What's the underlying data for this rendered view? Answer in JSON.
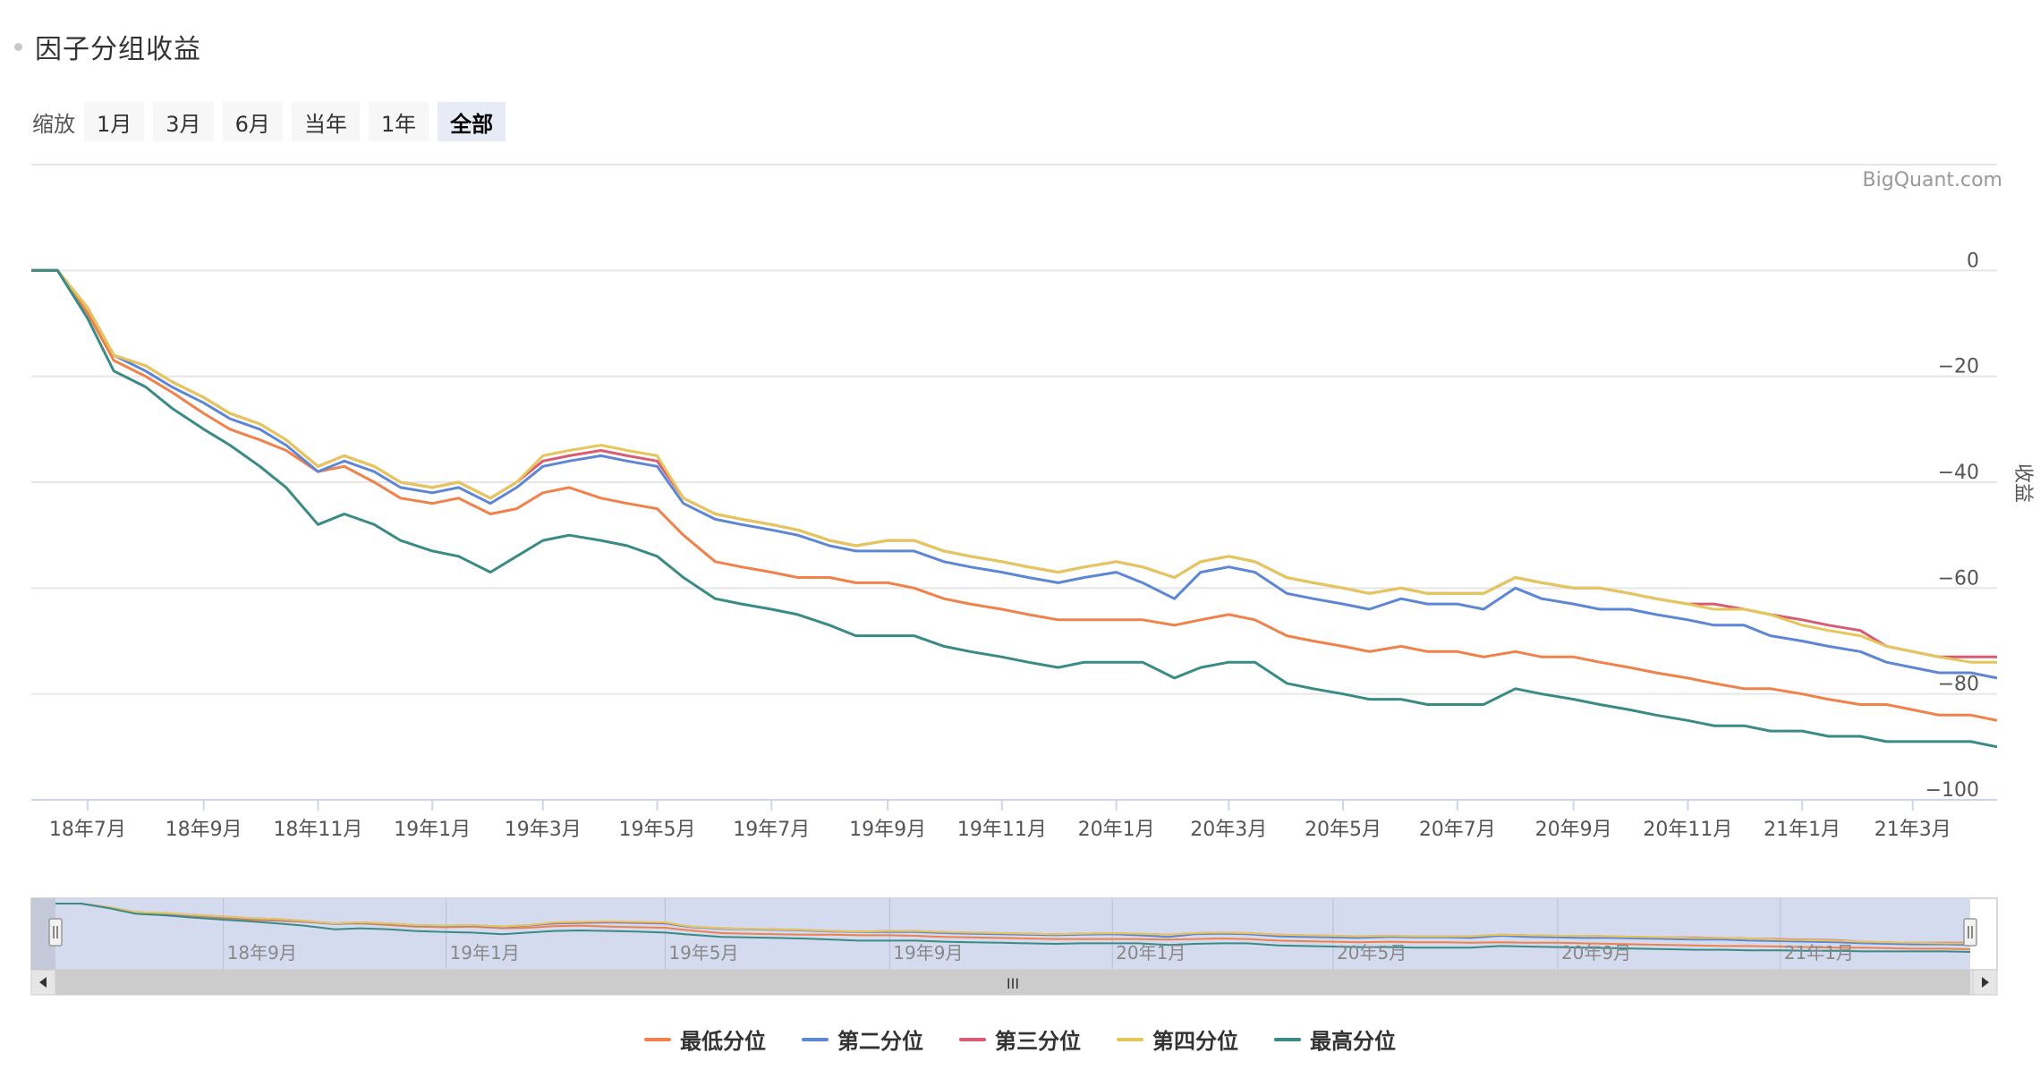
{
  "header": {
    "title": "因子分组收益"
  },
  "zoom": {
    "label": "缩放",
    "buttons": [
      "1月",
      "3月",
      "6月",
      "当年",
      "1年",
      "全部"
    ],
    "active": "全部"
  },
  "credit": "BigQuant.com",
  "navigator": {
    "labels": [
      "18年9月",
      "19年1月",
      "19年5月",
      "19年9月",
      "20年1月",
      "20年5月",
      "20年9月",
      "21年1月"
    ],
    "handle_glyph": "III"
  },
  "colors": {
    "最低分位": "#f0814a",
    "第二分位": "#5d86d4",
    "第三分位": "#d95b74",
    "第四分位": "#e5c65a",
    "最高分位": "#3a8a85",
    "grid": "#e6e6e6",
    "navigator_mask": "#d4dbef"
  },
  "chart_data": {
    "type": "line",
    "title": "",
    "xlabel": "",
    "ylabel": "收益",
    "ylim": [
      -100,
      20
    ],
    "yticks": [
      0,
      -20,
      -40,
      -60,
      -80,
      -100
    ],
    "xticks": [
      "18年7月",
      "18年9月",
      "18年11月",
      "19年1月",
      "19年3月",
      "19年5月",
      "19年7月",
      "19年9月",
      "19年11月",
      "20年1月",
      "20年3月",
      "20年5月",
      "20年7月",
      "20年9月",
      "20年11月",
      "21年1月",
      "21年3月"
    ],
    "x": [
      "2018-06-01",
      "2018-06-15",
      "2018-07-01",
      "2018-07-15",
      "2018-08-01",
      "2018-08-15",
      "2018-09-01",
      "2018-09-15",
      "2018-10-01",
      "2018-10-15",
      "2018-11-01",
      "2018-11-15",
      "2018-12-01",
      "2018-12-15",
      "2019-01-01",
      "2019-01-15",
      "2019-02-01",
      "2019-02-15",
      "2019-03-01",
      "2019-03-15",
      "2019-04-01",
      "2019-04-15",
      "2019-05-01",
      "2019-05-15",
      "2019-06-01",
      "2019-06-15",
      "2019-07-01",
      "2019-07-15",
      "2019-08-01",
      "2019-08-15",
      "2019-09-01",
      "2019-09-15",
      "2019-10-01",
      "2019-10-15",
      "2019-11-01",
      "2019-11-15",
      "2019-12-01",
      "2019-12-15",
      "2020-01-01",
      "2020-01-15",
      "2020-02-01",
      "2020-02-15",
      "2020-03-01",
      "2020-03-15",
      "2020-04-01",
      "2020-04-15",
      "2020-05-01",
      "2020-05-15",
      "2020-06-01",
      "2020-06-15",
      "2020-07-01",
      "2020-07-15",
      "2020-08-01",
      "2020-08-15",
      "2020-09-01",
      "2020-09-15",
      "2020-10-01",
      "2020-10-15",
      "2020-11-01",
      "2020-11-15",
      "2020-12-01",
      "2020-12-15",
      "2021-01-01",
      "2021-01-15",
      "2021-02-01",
      "2021-02-15",
      "2021-03-01",
      "2021-03-15",
      "2021-04-01",
      "2021-04-15"
    ],
    "series": [
      {
        "name": "最低分位",
        "values": [
          0,
          0,
          -8,
          -17,
          -20,
          -23,
          -27,
          -30,
          -32,
          -34,
          -38,
          -37,
          -40,
          -43,
          -44,
          -43,
          -46,
          -45,
          -42,
          -41,
          -43,
          -44,
          -45,
          -50,
          -55,
          -56,
          -57,
          -58,
          -58,
          -59,
          -59,
          -60,
          -62,
          -63,
          -64,
          -65,
          -66,
          -66,
          -66,
          -66,
          -67,
          -66,
          -65,
          -66,
          -69,
          -70,
          -71,
          -72,
          -71,
          -72,
          -72,
          -73,
          -72,
          -73,
          -73,
          -74,
          -75,
          -76,
          -77,
          -78,
          -79,
          -79,
          -80,
          -81,
          -82,
          -82,
          -83,
          -84,
          -84,
          -85
        ]
      },
      {
        "name": "第二分位",
        "values": [
          0,
          0,
          -7,
          -16,
          -19,
          -22,
          -25,
          -28,
          -30,
          -33,
          -38,
          -36,
          -38,
          -41,
          -42,
          -41,
          -44,
          -41,
          -37,
          -36,
          -35,
          -36,
          -37,
          -44,
          -47,
          -48,
          -49,
          -50,
          -52,
          -53,
          -53,
          -53,
          -55,
          -56,
          -57,
          -58,
          -59,
          -58,
          -57,
          -59,
          -62,
          -57,
          -56,
          -57,
          -61,
          -62,
          -63,
          -64,
          -62,
          -63,
          -63,
          -64,
          -60,
          -62,
          -63,
          -64,
          -64,
          -65,
          -66,
          -67,
          -67,
          -69,
          -70,
          -71,
          -72,
          -74,
          -75,
          -76,
          -76,
          -77
        ]
      },
      {
        "name": "第三分位",
        "values": [
          0,
          0,
          -7,
          -16,
          -18,
          -21,
          -24,
          -27,
          -29,
          -32,
          -37,
          -35,
          -37,
          -40,
          -41,
          -40,
          -43,
          -40,
          -36,
          -35,
          -34,
          -35,
          -36,
          -43,
          -46,
          -47,
          -48,
          -49,
          -51,
          -52,
          -51,
          -51,
          -53,
          -54,
          -55,
          -56,
          -57,
          -56,
          -55,
          -56,
          -58,
          -55,
          -54,
          -55,
          -58,
          -59,
          -60,
          -61,
          -60,
          -61,
          -61,
          -61,
          -58,
          -59,
          -60,
          -60,
          -61,
          -62,
          -63,
          -63,
          -64,
          -65,
          -66,
          -67,
          -68,
          -71,
          -72,
          -73,
          -73,
          -73
        ]
      },
      {
        "name": "第四分位",
        "values": [
          0,
          0,
          -7,
          -16,
          -18,
          -21,
          -24,
          -27,
          -29,
          -32,
          -37,
          -35,
          -37,
          -40,
          -41,
          -40,
          -43,
          -40,
          -35,
          -34,
          -33,
          -34,
          -35,
          -43,
          -46,
          -47,
          -48,
          -49,
          -51,
          -52,
          -51,
          -51,
          -53,
          -54,
          -55,
          -56,
          -57,
          -56,
          -55,
          -56,
          -58,
          -55,
          -54,
          -55,
          -58,
          -59,
          -60,
          -61,
          -60,
          -61,
          -61,
          -61,
          -58,
          -59,
          -60,
          -60,
          -61,
          -62,
          -63,
          -64,
          -64,
          -65,
          -67,
          -68,
          -69,
          -71,
          -72,
          -73,
          -74,
          -74
        ]
      },
      {
        "name": "最高分位",
        "values": [
          0,
          0,
          -9,
          -19,
          -22,
          -26,
          -30,
          -33,
          -37,
          -41,
          -48,
          -46,
          -48,
          -51,
          -53,
          -54,
          -57,
          -54,
          -51,
          -50,
          -51,
          -52,
          -54,
          -58,
          -62,
          -63,
          -64,
          -65,
          -67,
          -69,
          -69,
          -69,
          -71,
          -72,
          -73,
          -74,
          -75,
          -74,
          -74,
          -74,
          -77,
          -75,
          -74,
          -74,
          -78,
          -79,
          -80,
          -81,
          -81,
          -82,
          -82,
          -82,
          -79,
          -80,
          -81,
          -82,
          -83,
          -84,
          -85,
          -86,
          -86,
          -87,
          -87,
          -88,
          -88,
          -89,
          -89,
          -89,
          -89,
          -90
        ]
      }
    ],
    "grid": true,
    "legend_position": "bottom-center"
  }
}
